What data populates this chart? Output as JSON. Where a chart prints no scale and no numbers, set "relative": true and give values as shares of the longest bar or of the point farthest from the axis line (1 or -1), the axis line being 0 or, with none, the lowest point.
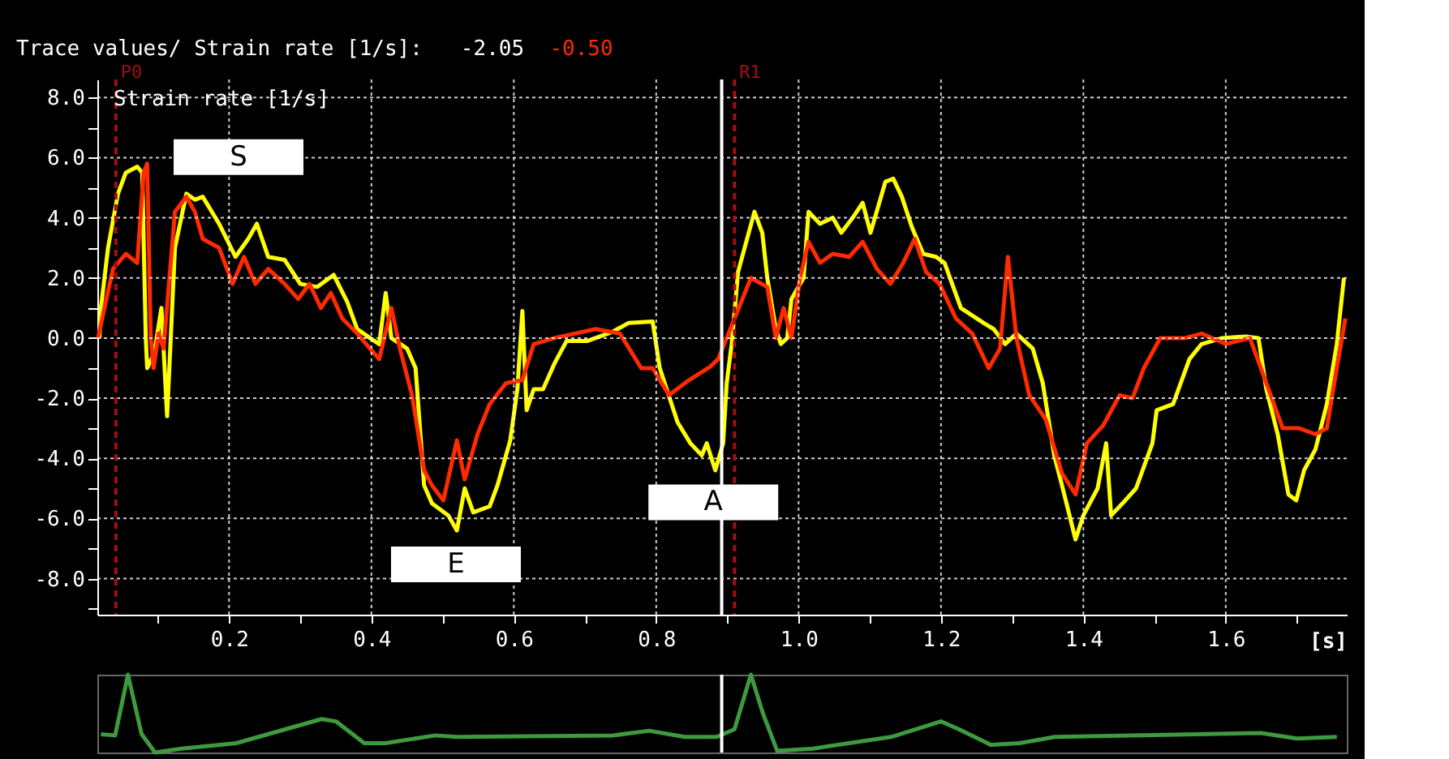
{
  "chart_data": [
    {
      "type": "line",
      "title": "Trace values/ Strain rate  [1/s]:",
      "ylabel": "Strain rate [1/s]",
      "xlabel": "[s]",
      "annotations": [
        "-2.05",
        "-0.50",
        "S",
        "E",
        "A"
      ],
      "xlim": [
        0.015,
        1.77
      ],
      "ylim": [
        -9.2,
        8.6
      ],
      "xticks": [
        {
          "value": 0.1,
          "label": null
        },
        0.2,
        {
          "value": 0.3,
          "label": null
        },
        0.4,
        {
          "value": 0.5,
          "label": null
        },
        0.6,
        {
          "value": 0.7,
          "label": null
        },
        0.8,
        {
          "value": 0.9,
          "label": null
        },
        {
          "value": 1.0,
          "label": "1.0"
        },
        {
          "value": 1.1,
          "label": null
        },
        1.2,
        {
          "value": 1.3,
          "label": null
        },
        1.4,
        {
          "value": 1.5,
          "label": null
        },
        1.6,
        {
          "value": 1.7,
          "label": null
        }
      ],
      "yticks": [
        {
          "value": 8,
          "label": "8.0"
        },
        {
          "value": 7,
          "label": null
        },
        {
          "value": 6,
          "label": "6.0"
        },
        {
          "value": 5,
          "label": null
        },
        {
          "value": 4,
          "label": "4.0"
        },
        {
          "value": 3,
          "label": null
        },
        {
          "value": 2,
          "label": "2.0"
        },
        {
          "value": 1,
          "label": null
        },
        {
          "value": 0,
          "label": "0.0"
        },
        {
          "value": -1,
          "label": null
        },
        {
          "value": -2,
          "label": "-2.0"
        },
        {
          "value": -3,
          "label": null
        },
        {
          "value": -4,
          "label": "-4.0"
        },
        {
          "value": -5,
          "label": null
        },
        {
          "value": -6,
          "label": "-6.0"
        },
        {
          "value": -7,
          "label": null
        },
        {
          "value": -8,
          "label": "-8.0"
        },
        {
          "value": -9,
          "label": null
        }
      ],
      "grid": true,
      "marker": "none",
      "line_style": "solid",
      "ref_lines": [
        {
          "axis": "x",
          "value": 0.041,
          "label": "P0",
          "color": "#a01010",
          "line_style": "dashed"
        },
        {
          "axis": "x",
          "value": 0.91,
          "label": "R1",
          "color": "#a01010",
          "line_style": "dashed"
        },
        {
          "axis": "x",
          "value": 0.892,
          "color": "#ffffff",
          "line_style": "solid"
        }
      ],
      "series": [
        {
          "color": "#ffff00",
          "x": [
            0.018,
            0.02,
            0.03,
            0.044,
            0.055,
            0.071,
            0.078,
            0.083,
            0.085,
            0.095,
            0.105,
            0.113,
            0.124,
            0.14,
            0.152,
            0.163,
            0.186,
            0.209,
            0.227,
            0.239,
            0.255,
            0.278,
            0.3,
            0.324,
            0.347,
            0.366,
            0.38,
            0.398,
            0.411,
            0.42,
            0.428,
            0.45,
            0.462,
            0.474,
            0.485,
            0.508,
            0.52,
            0.531,
            0.543,
            0.566,
            0.577,
            0.595,
            0.605,
            0.612,
            0.618,
            0.628,
            0.641,
            0.657,
            0.674,
            0.703,
            0.738,
            0.761,
            0.795,
            0.805,
            0.83,
            0.848,
            0.864,
            0.871,
            0.883,
            0.894,
            0.899,
            0.906,
            0.915,
            0.938,
            0.949,
            0.956,
            0.968,
            0.975,
            0.984,
            0.99,
            1.007,
            1.014,
            1.03,
            1.048,
            1.06,
            1.076,
            1.09,
            1.101,
            1.122,
            1.133,
            1.145,
            1.159,
            1.175,
            1.193,
            1.205,
            1.228,
            1.26,
            1.274,
            1.29,
            1.306,
            1.329,
            1.343,
            1.359,
            1.37,
            1.389,
            1.4,
            1.42,
            1.432,
            1.439,
            1.455,
            1.474,
            1.497,
            1.503,
            1.526,
            1.549,
            1.566,
            1.595,
            1.628,
            1.646,
            1.657,
            1.673,
            1.688,
            1.699,
            1.71,
            1.726,
            1.742,
            1.756,
            1.766
          ],
          "values": [
            0,
            1.0,
            3.0,
            4.8,
            5.5,
            5.7,
            5.5,
            0,
            -1.0,
            -0.5,
            1.0,
            -2.6,
            3.0,
            4.8,
            4.6,
            4.7,
            3.8,
            2.7,
            3.3,
            3.8,
            2.7,
            2.6,
            1.8,
            1.7,
            2.1,
            1.2,
            0.3,
            0,
            -0.2,
            1.5,
            0,
            -0.35,
            -1.0,
            -4.9,
            -5.5,
            -5.9,
            -6.4,
            -5.0,
            -5.8,
            -5.6,
            -4.9,
            -3.4,
            -1.7,
            0.9,
            -2.4,
            -1.7,
            -1.7,
            -0.85,
            -0.1,
            -0.1,
            0.2,
            0.5,
            0.55,
            -1.0,
            -2.8,
            -3.5,
            -3.9,
            -3.5,
            -4.4,
            -3.5,
            -1.5,
            -0.2,
            2.2,
            4.2,
            3.5,
            2.0,
            0.3,
            -0.2,
            0,
            1.3,
            2.0,
            4.2,
            3.8,
            4.0,
            3.5,
            4.0,
            4.5,
            3.5,
            5.2,
            5.3,
            4.7,
            3.7,
            2.8,
            2.7,
            2.5,
            1.0,
            0.5,
            0.3,
            -0.2,
            0.15,
            -0.35,
            -1.5,
            -3.9,
            -4.9,
            -6.7,
            -5.9,
            -5.0,
            -3.5,
            -5.9,
            -5.5,
            -5.0,
            -3.5,
            -2.4,
            -2.2,
            -0.7,
            -0.2,
            0,
            0.05,
            0,
            -1.7,
            -3.2,
            -5.2,
            -5.4,
            -4.4,
            -3.7,
            -2.2,
            -0.2,
            2.0
          ]
        },
        {
          "color": "#ff2a00",
          "x": [
            0.016,
            0.025,
            0.037,
            0.055,
            0.071,
            0.08,
            0.085,
            0.09,
            0.094,
            0.101,
            0.108,
            0.124,
            0.14,
            0.152,
            0.163,
            0.186,
            0.205,
            0.221,
            0.237,
            0.255,
            0.278,
            0.297,
            0.313,
            0.329,
            0.343,
            0.359,
            0.38,
            0.398,
            0.411,
            0.428,
            0.44,
            0.457,
            0.474,
            0.485,
            0.501,
            0.52,
            0.531,
            0.549,
            0.566,
            0.589,
            0.612,
            0.628,
            0.657,
            0.715,
            0.749,
            0.779,
            0.795,
            0.818,
            0.846,
            0.876,
            0.887,
            0.899,
            0.91,
            0.933,
            0.956,
            0.968,
            0.979,
            0.99,
            1.002,
            1.014,
            1.03,
            1.048,
            1.071,
            1.09,
            1.11,
            1.129,
            1.147,
            1.163,
            1.179,
            1.198,
            1.221,
            1.244,
            1.267,
            1.283,
            1.294,
            1.306,
            1.324,
            1.347,
            1.37,
            1.389,
            1.405,
            1.428,
            1.451,
            1.469,
            1.485,
            1.508,
            1.543,
            1.566,
            1.6,
            1.634,
            1.657,
            1.68,
            1.703,
            1.726,
            1.742,
            1.756,
            1.768
          ],
          "values": [
            0,
            1.0,
            2.3,
            2.8,
            2.5,
            5.5,
            5.8,
            0,
            -1.0,
            0.15,
            -0.35,
            4.2,
            4.7,
            4.2,
            3.3,
            3.0,
            1.8,
            2.7,
            1.8,
            2.3,
            1.8,
            1.3,
            1.8,
            1.0,
            1.5,
            0.65,
            0.15,
            -0.35,
            -0.7,
            1.0,
            -0.35,
            -1.9,
            -4.4,
            -4.9,
            -5.4,
            -3.4,
            -4.7,
            -3.2,
            -2.2,
            -1.5,
            -1.4,
            -0.2,
            0,
            0.3,
            0.15,
            -1.0,
            -1.0,
            -1.9,
            -1.4,
            -0.95,
            -0.7,
            0,
            0.65,
            2.0,
            1.7,
            0,
            1.0,
            0,
            2.0,
            3.2,
            2.5,
            2.8,
            2.7,
            3.2,
            2.3,
            1.8,
            2.5,
            3.3,
            2.2,
            1.8,
            0.65,
            0.15,
            -1.0,
            -0.35,
            2.7,
            0,
            -1.9,
            -2.7,
            -4.5,
            -5.2,
            -3.5,
            -2.9,
            -1.9,
            -2.0,
            -1.0,
            0,
            0,
            0.15,
            -0.2,
            0,
            -1.5,
            -3.0,
            -3.0,
            -3.2,
            -3.0,
            -1.0,
            0.65
          ]
        }
      ]
    },
    {
      "type": "line",
      "relative": true,
      "xlim": [
        0.015,
        1.77
      ],
      "tick_labels": false,
      "ref_lines": [
        {
          "axis": "x",
          "value": 0.892,
          "color": "#ffffff",
          "line_style": "solid"
        }
      ],
      "series": [
        {
          "color": "#3f9a3f",
          "x": [
            0.02,
            0.04,
            0.058,
            0.077,
            0.096,
            0.133,
            0.21,
            0.33,
            0.35,
            0.39,
            0.42,
            0.49,
            0.52,
            0.74,
            0.79,
            0.84,
            0.885,
            0.91,
            0.933,
            0.95,
            0.97,
            1.02,
            1.13,
            1.2,
            1.225,
            1.27,
            1.31,
            1.36,
            1.65,
            1.7,
            1.756
          ],
          "values": [
            0.235,
            0.22,
            1.0,
            0.24,
            0.0,
            0.05,
            0.12,
            0.43,
            0.4,
            0.12,
            0.12,
            0.22,
            0.2,
            0.22,
            0.28,
            0.2,
            0.2,
            0.3,
            1.0,
            0.5,
            0.02,
            0.05,
            0.2,
            0.4,
            0.3,
            0.1,
            0.12,
            0.2,
            0.25,
            0.18,
            0.2
          ]
        }
      ]
    }
  ]
}
